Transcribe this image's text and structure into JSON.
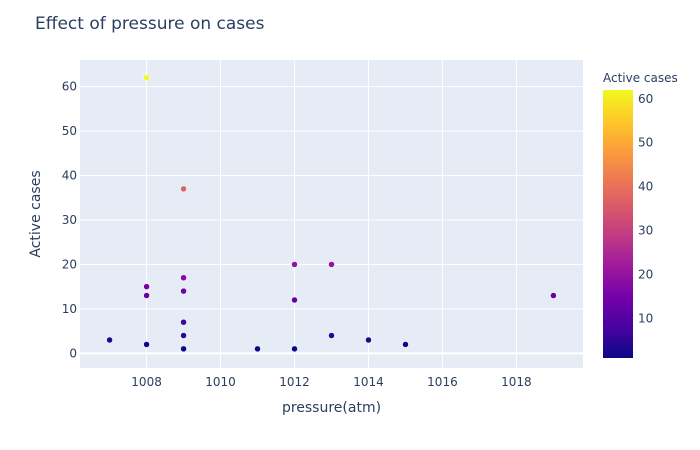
{
  "chart_data": {
    "type": "scatter",
    "title": "Effect of pressure on cases",
    "xlabel": "pressure(atm)",
    "ylabel": "Active cases",
    "xlim": [
      1006.2,
      1019.8
    ],
    "ylim": [
      -3.3,
      66
    ],
    "x_ticks": [
      1008,
      1010,
      1012,
      1014,
      1016,
      1018
    ],
    "y_ticks": [
      0,
      10,
      20,
      30,
      40,
      50,
      60
    ],
    "grid": true,
    "colorbar": {
      "title": "Active cases",
      "range": [
        1,
        62
      ],
      "ticks": [
        10,
        20,
        30,
        40,
        50,
        60
      ],
      "colorscale": [
        "#0d0887",
        "#46039f",
        "#7201a8",
        "#9c179e",
        "#bd3786",
        "#d8576b",
        "#ed7953",
        "#fb9f3a",
        "#fdca26",
        "#f0f921"
      ]
    },
    "points": [
      {
        "x": 1007,
        "y": 3
      },
      {
        "x": 1008,
        "y": 62
      },
      {
        "x": 1008,
        "y": 15
      },
      {
        "x": 1008,
        "y": 13
      },
      {
        "x": 1008,
        "y": 2
      },
      {
        "x": 1009,
        "y": 37
      },
      {
        "x": 1009,
        "y": 17
      },
      {
        "x": 1009,
        "y": 14
      },
      {
        "x": 1009,
        "y": 7
      },
      {
        "x": 1009,
        "y": 4
      },
      {
        "x": 1009,
        "y": 1
      },
      {
        "x": 1011,
        "y": 1
      },
      {
        "x": 1012,
        "y": 20
      },
      {
        "x": 1012,
        "y": 12
      },
      {
        "x": 1012,
        "y": 1
      },
      {
        "x": 1013,
        "y": 20
      },
      {
        "x": 1013,
        "y": 4
      },
      {
        "x": 1014,
        "y": 3
      },
      {
        "x": 1015,
        "y": 2
      },
      {
        "x": 1019,
        "y": 13
      }
    ]
  }
}
